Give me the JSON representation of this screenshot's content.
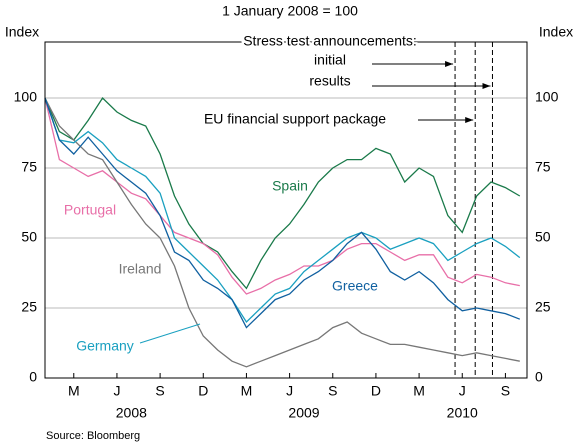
{
  "chart_data": {
    "type": "line",
    "title": "1 January 2008 = 100",
    "ylabel": "Index",
    "y2label": "Index",
    "xlim": [
      0,
      33.5
    ],
    "xticks": [
      {
        "value": 2,
        "label": "M"
      },
      {
        "value": 5,
        "label": "J"
      },
      {
        "value": 8,
        "label": "S"
      },
      {
        "value": 11,
        "label": "D"
      },
      {
        "value": 14,
        "label": "M"
      },
      {
        "value": 17,
        "label": "J"
      },
      {
        "value": 20,
        "label": "S"
      },
      {
        "value": 23,
        "label": "D"
      },
      {
        "value": 26,
        "label": "M"
      },
      {
        "value": 29,
        "label": "J"
      },
      {
        "value": 32,
        "label": "S"
      }
    ],
    "years": [
      {
        "value": 6,
        "label": "2008"
      },
      {
        "value": 18,
        "label": "2009"
      },
      {
        "value": 29,
        "label": "2010"
      }
    ],
    "ylim": [
      0,
      120
    ],
    "yticks": [
      0,
      25,
      50,
      75,
      100
    ],
    "y2lim": [
      0,
      120
    ],
    "y2ticks": [
      0,
      25,
      50,
      75,
      100
    ],
    "grid": true,
    "x": [
      0,
      1,
      2,
      3,
      4,
      5,
      6,
      7,
      8,
      9,
      10,
      11,
      12,
      13,
      14,
      15,
      16,
      17,
      18,
      19,
      20,
      21,
      22,
      23,
      24,
      25,
      26,
      27,
      28,
      29,
      30,
      31,
      32,
      33
    ],
    "series": [
      {
        "name": "Spain",
        "color": "#1a7a4a",
        "values": [
          100,
          88,
          85,
          92,
          100,
          95,
          92,
          90,
          80,
          65,
          55,
          48,
          45,
          38,
          32,
          42,
          50,
          55,
          62,
          70,
          75,
          78,
          78,
          82,
          80,
          70,
          75,
          72,
          58,
          52,
          65,
          70,
          68,
          65
        ]
      },
      {
        "name": "Portugal",
        "color": "#e86fa8",
        "values": [
          100,
          78,
          75,
          72,
          74,
          70,
          66,
          64,
          58,
          52,
          50,
          48,
          44,
          36,
          30,
          32,
          35,
          37,
          40,
          40,
          42,
          46,
          48,
          48,
          45,
          42,
          44,
          44,
          36,
          34,
          37,
          36,
          34,
          33
        ]
      },
      {
        "name": "Ireland",
        "color": "#777777",
        "values": [
          100,
          90,
          85,
          80,
          78,
          70,
          62,
          55,
          50,
          40,
          25,
          15,
          10,
          6,
          4,
          6,
          8,
          10,
          12,
          14,
          18,
          20,
          16,
          14,
          12,
          12,
          11,
          10,
          9,
          8,
          9,
          8,
          7,
          6
        ]
      },
      {
        "name": "Germany",
        "color": "#1aa0c0",
        "values": [
          100,
          85,
          84,
          88,
          84,
          78,
          75,
          72,
          66,
          50,
          45,
          40,
          35,
          28,
          20,
          25,
          30,
          32,
          38,
          42,
          46,
          50,
          52,
          50,
          46,
          48,
          50,
          48,
          42,
          45,
          48,
          50,
          47,
          43
        ]
      },
      {
        "name": "Greece",
        "color": "#1060a0",
        "values": [
          100,
          85,
          80,
          86,
          80,
          74,
          70,
          66,
          58,
          45,
          42,
          35,
          32,
          28,
          18,
          23,
          28,
          30,
          35,
          38,
          42,
          48,
          52,
          46,
          38,
          35,
          38,
          34,
          28,
          24,
          25,
          24,
          23,
          21
        ]
      }
    ],
    "events": [
      28.5,
      29.9,
      31.1
    ],
    "annotations": [
      "Stress test announcements:",
      "initial",
      "results",
      "EU financial support package"
    ],
    "source": "Source: Bloomberg"
  }
}
